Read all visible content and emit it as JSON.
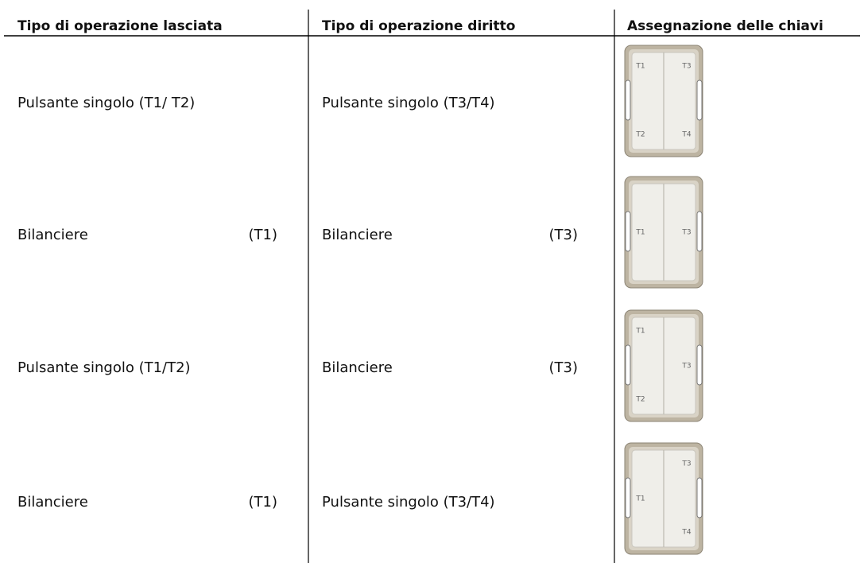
{
  "table": {
    "headers": [
      "Tipo di operazione lasciata",
      "Tipo di operazione diritto",
      "Assegnazione delle chiavi"
    ],
    "rows": [
      {
        "left": {
          "label": "Pulsante singolo (T1/ T2)"
        },
        "right": {
          "label": "Pulsante singolo (T3/T4)"
        },
        "keys": {
          "top_left": "T1",
          "top_right": "T3",
          "bottom_left": "T2",
          "bottom_right": "T4"
        }
      },
      {
        "left": {
          "label": "Bilanciere",
          "key": "(T1)"
        },
        "right": {
          "label": "Bilanciere",
          "key": "(T3)"
        },
        "keys": {
          "middle_left": "T1",
          "middle_right": "T3"
        }
      },
      {
        "left": {
          "label": "Pulsante singolo (T1/T2)"
        },
        "right": {
          "label": "Bilanciere",
          "key": "(T3)"
        },
        "keys": {
          "top_left": "T1",
          "middle_right": "T3",
          "bottom_left": "T2"
        }
      },
      {
        "left": {
          "label": "Bilanciere",
          "key": "(T1)"
        },
        "right": {
          "label": "Pulsante singolo (T3/T4)"
        },
        "keys": {
          "top_right": "T3",
          "middle_left": "T1",
          "bottom_right": "T4"
        }
      }
    ]
  }
}
